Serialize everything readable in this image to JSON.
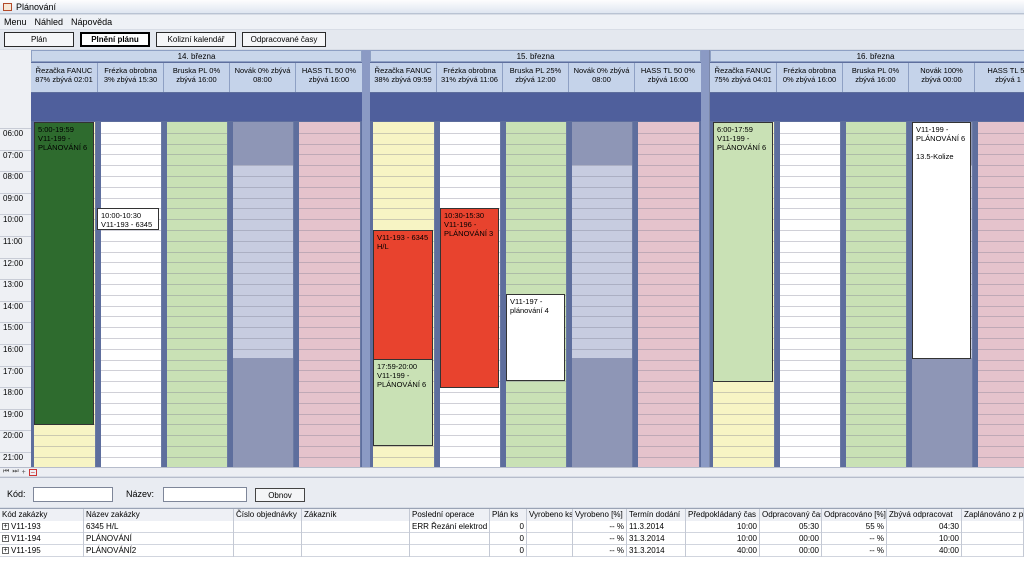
{
  "window": {
    "title": "Plánování"
  },
  "menu": [
    "Menu",
    "Náhled",
    "Nápověda"
  ],
  "toolbar": {
    "buttons": [
      "Plán",
      "Plnění plánu",
      "Kolizní kalendář",
      "Odpracované časy"
    ],
    "active_index": 1
  },
  "times": [
    "06:00",
    "07:00",
    "08:00",
    "09:00",
    "10:00",
    "11:00",
    "12:00",
    "13:00",
    "14:00",
    "15:00",
    "16:00",
    "17:00",
    "18:00",
    "19:00",
    "20:00",
    "21:00"
  ],
  "days": [
    {
      "label": "14. března",
      "columns": [
        {
          "line1": "Řezačka FANUC",
          "line2": "87% zbývá 02:01",
          "color": "#f7f4c4"
        },
        {
          "line1": "Frézka obrobna",
          "line2": "3% zbývá 15:30",
          "color": "#ffffff"
        },
        {
          "line1": "Bruska PL 0%",
          "line2": "zbývá 16:00",
          "color": "#c9e1b5"
        },
        {
          "line1": "Novák 0% zbývá",
          "line2": "08:00",
          "color": "#c7cce0"
        },
        {
          "line1": "HASS TL 50 0%",
          "line2": "zbývá 16:00",
          "color": "#e5c3cc"
        }
      ],
      "blocks": [
        {
          "text": "5:00-19:59\nV11-199 -\nPLÁNOVÁNÍ 6",
          "color": "#2e6b2e"
        },
        {
          "text": "10:00-10:30\nV11-193 - 6345",
          "color": "#ffffff"
        }
      ]
    },
    {
      "label": "15. března",
      "columns": [
        {
          "line1": "Řezačka FANUC",
          "line2": "38% zbývá 09:59",
          "color": "#f7f4c4"
        },
        {
          "line1": "Frézka obrobna",
          "line2": "31% zbývá 11:06",
          "color": "#ffffff"
        },
        {
          "line1": "Bruska PL 25%",
          "line2": "zbývá 12:00",
          "color": "#c9e1b5"
        },
        {
          "line1": "Novák 0% zbývá",
          "line2": "08:00",
          "color": "#c7cce0"
        },
        {
          "line1": "HASS TL 50 0%",
          "line2": "zbývá 16:00",
          "color": "#e5c3cc"
        }
      ],
      "blocks": [
        {
          "text": "V11-193 - 6345\nH/L",
          "color": "#e8432e"
        },
        {
          "text": "10:30-15:30\nV11-196 -\nPLÁNOVÁNÍ 3",
          "color": "#e8432e"
        },
        {
          "text": "V11-197 -\nplánování 4",
          "color": "#ffffff"
        },
        {
          "text": "17:59-20:00\nV11-199 -\nPLÁNOVÁNÍ 6",
          "color": "#c9e1b5"
        }
      ]
    },
    {
      "label": "16. března",
      "columns": [
        {
          "line1": "Řezačka FANUC",
          "line2": "75% zbývá 04:01",
          "color": "#f7f4c4"
        },
        {
          "line1": "Frézka obrobna",
          "line2": "0% zbývá 16:00",
          "color": "#ffffff"
        },
        {
          "line1": "Bruska PL 0%",
          "line2": "zbývá 16:00",
          "color": "#c9e1b5"
        },
        {
          "line1": "Novák 100%",
          "line2": "zbývá 00:00",
          "color": "#c7cce0"
        },
        {
          "line1": "HASS TL 50",
          "line2": "zbývá 1",
          "color": "#e5c3cc"
        }
      ],
      "blocks": [
        {
          "text": "6:00-17:59\nV11-199 -\nPLÁNOVÁNÍ 6",
          "color": "#c9e1b5"
        },
        {
          "text": "V11-199 -\nPLÁNOVÁNÍ 6\n\n13.5-Kolize",
          "color": "#ffffff"
        }
      ]
    }
  ],
  "filter": {
    "kod_label": "Kód:",
    "nazev_label": "Název:",
    "button": "Obnov"
  },
  "table": {
    "headers": [
      "Kód zakázky",
      "Název zakázky",
      "Číslo objednávky",
      "Zákazník",
      "Poslední operace",
      "Plán ks",
      "Vyrobeno ks",
      "Vyrobeno [%]",
      "Termín dodání",
      "Předpokládaný čas",
      "Odpracovaný čas",
      "Odpracováno [%]",
      "Zbývá odpracovat",
      "Zaplánováno z př"
    ],
    "rows": [
      [
        "V11-193",
        "6345 H/L",
        "",
        "",
        "ERR Řezání elektrod",
        "0",
        "",
        "-- %",
        "11.3.2014",
        "10:00",
        "05:30",
        "55 %",
        "04:30",
        ""
      ],
      [
        "V11-194",
        "PLÁNOVÁNÍ",
        "",
        "",
        "",
        "0",
        "",
        "-- %",
        "31.3.2014",
        "10:00",
        "00:00",
        "-- %",
        "10:00",
        ""
      ],
      [
        "V11-195",
        "PLÁNOVÁNÍ2",
        "",
        "",
        "",
        "0",
        "",
        "-- %",
        "31.3.2014",
        "40:00",
        "00:00",
        "-- %",
        "40:00",
        ""
      ]
    ]
  }
}
